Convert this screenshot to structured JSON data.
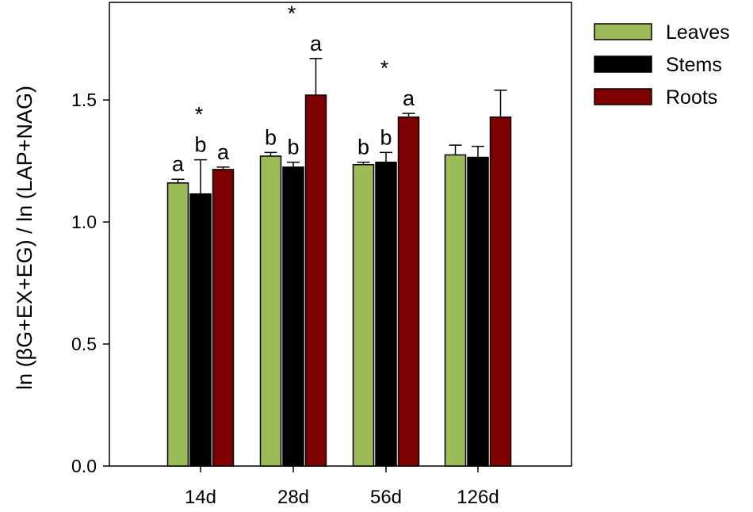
{
  "chart_data": {
    "type": "bar",
    "ylabel": "ln (βG+EX+EG) / ln (LAP+NAG)",
    "xlabel": "",
    "ylim": [
      0,
      1.9
    ],
    "yticks": [
      "0.0",
      "0.5",
      "1.0",
      "1.5"
    ],
    "ytick_values": [
      0,
      0.5,
      1.0,
      1.5
    ],
    "grid": false,
    "legend_position": "top-right outside",
    "categories": [
      "14d",
      "28d",
      "56d",
      "126d"
    ],
    "series": [
      {
        "name": "Leaves",
        "color": "#9bbb59",
        "values": [
          1.16,
          1.27,
          1.235,
          1.275
        ],
        "errors": [
          0.015,
          0.015,
          0.01,
          0.04
        ],
        "letters": [
          "a",
          "b",
          "b",
          ""
        ]
      },
      {
        "name": "Stems",
        "color": "#000000",
        "values": [
          1.115,
          1.225,
          1.245,
          1.265
        ],
        "errors": [
          0.14,
          0.02,
          0.04,
          0.045
        ],
        "letters": [
          "b",
          "b",
          "b",
          ""
        ]
      },
      {
        "name": "Roots",
        "color": "#7f0000",
        "values": [
          1.215,
          1.52,
          1.43,
          1.43
        ],
        "errors": [
          0.01,
          0.15,
          0.015,
          0.11
        ],
        "letters": [
          "a",
          "a",
          "a",
          ""
        ]
      }
    ],
    "significance_marks": [
      "*",
      "*",
      "*",
      ""
    ]
  }
}
